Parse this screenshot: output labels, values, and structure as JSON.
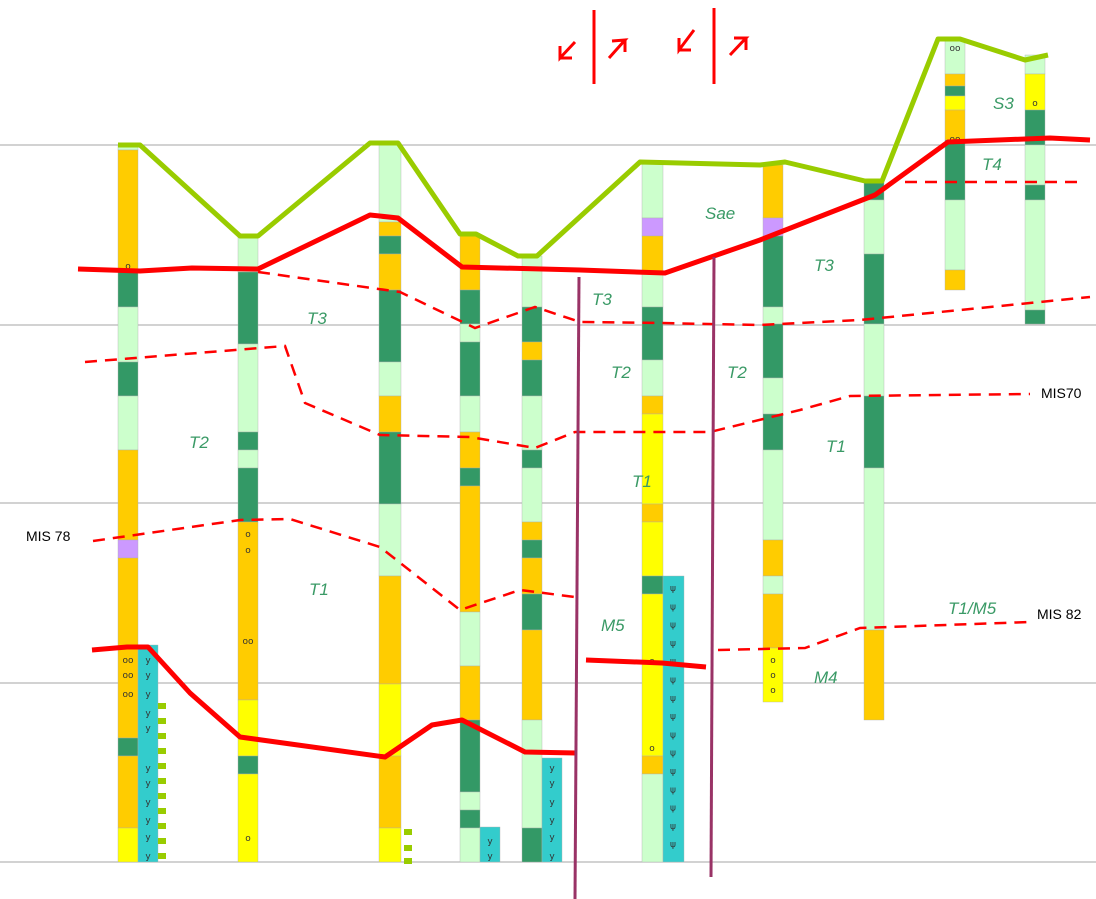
{
  "labels": {
    "units": {
      "S3": "S3",
      "T4": "T4",
      "Sae": "Sae",
      "T3_right": "T3",
      "T3_mid": "T3",
      "T3_left": "T3",
      "T2_left": "T2",
      "T2_mid": "T2",
      "T2_right": "T2",
      "T1_right": "T1",
      "T1_mid": "T1",
      "T1_left": "T1",
      "T1M5": "T1/M5",
      "M5": "M5",
      "M4": "M4"
    },
    "mis": {
      "mis70": "MIS70",
      "mis78": "MIS 78",
      "mis82": "MIS 82"
    }
  },
  "symbols": {
    "gravel": "o",
    "double_gravel": "oo",
    "gypsum": "y",
    "plant": "ψ"
  },
  "colors": {
    "top_surface": "#99cc00",
    "boundary": "#ff0000",
    "fault": "#993366",
    "fine_sand": "#ccffcc",
    "clay": "#339966",
    "sand": "#ffcc00",
    "yellow_sand": "#ffff00",
    "peat": "#cc99ff",
    "gypsum_band": "#33cccc",
    "grid": "#a6a6a6"
  }
}
